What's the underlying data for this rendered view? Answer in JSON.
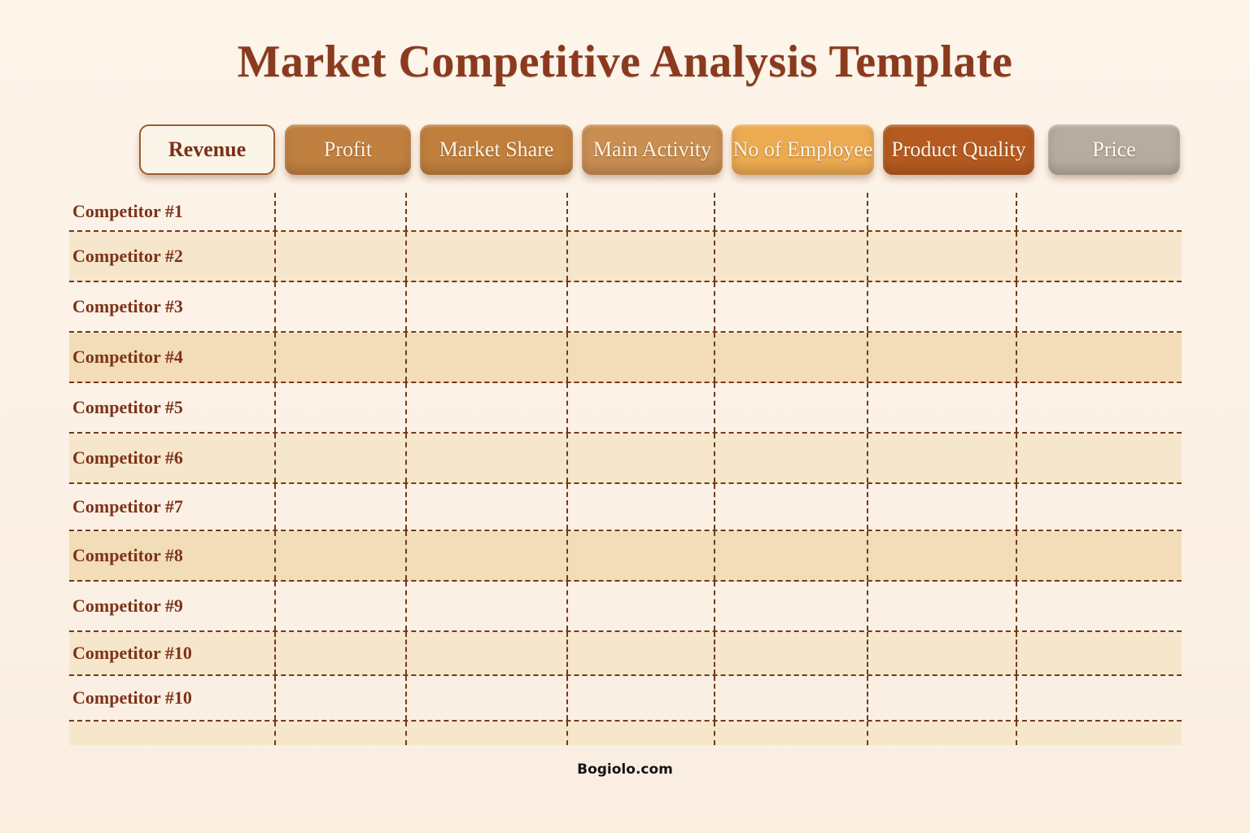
{
  "page": {
    "title": "Market Competitive Analysis Template",
    "watermark": "Bogiolo.com"
  },
  "header": {
    "buttons": [
      {
        "label": "Revenue",
        "bg": "#fbf4e8",
        "text_color": "#7b2f16",
        "border_color": "#9c5a28",
        "variant": "outline"
      },
      {
        "label": "Profit",
        "bg": "#c08040",
        "text_color": "#faf3e4",
        "variant": "solid"
      },
      {
        "label": "Market Share",
        "bg": "#c07f3d",
        "text_color": "#faf3e4",
        "variant": "solid"
      },
      {
        "label": "Main Activity",
        "bg": "#c98e52",
        "text_color": "#faf3e4",
        "variant": "solid"
      },
      {
        "label": "No of Employee",
        "bg": "#ecaa51",
        "text_color": "#faf3e4",
        "variant": "solid"
      },
      {
        "label": "Product Quality",
        "bg": "#b55a20",
        "text_color": "#faf3e4",
        "variant": "solid"
      },
      {
        "label": "Price",
        "bg": "#b7aca0",
        "text_color": "#fcfaf6",
        "variant": "solid"
      }
    ]
  },
  "table": {
    "row_labels": [
      "Competitor #1",
      "Competitor #2",
      "Competitor #3",
      "Competitor #4",
      "Competitor #5",
      "Competitor #6",
      "Competitor #7",
      "Competitor #8",
      "Competitor #9",
      "Competitor #10",
      "Competitor #10",
      ""
    ],
    "columns_count": 7,
    "cells_empty": true
  },
  "colors": {
    "page_background": "#fcf1e6",
    "title_text": "#8a3a1e",
    "row_label_text": "#7d3318",
    "grid_dash": "#6e3c18",
    "row_beige": "#f6e6cb",
    "row_beige_dark": "#f3ddb8",
    "row_cream": "#fdf6ee"
  }
}
